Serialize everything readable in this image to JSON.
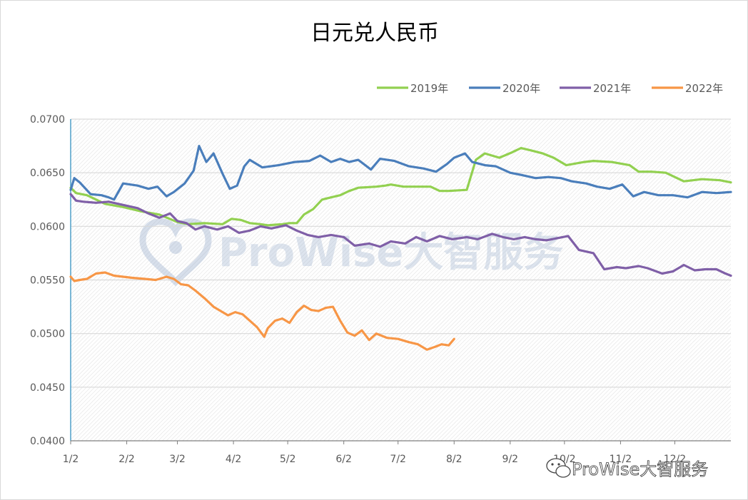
{
  "colors": {
    "2019": "#92d050",
    "2020": "#4a7ebb",
    "2021": "#7f5fa7",
    "2022": "#f79646",
    "axis": "#4f9fc8",
    "grid": "#d9d9d9"
  },
  "watermark": {
    "text": "ProWise大智服务",
    "logo_icon": "prowise-heart-icon"
  },
  "footer": {
    "icon": "wechat-icon",
    "text": "ProWise大智服务"
  },
  "chart_data": {
    "type": "line",
    "title": "日元兑人民币",
    "xlabel": "",
    "ylabel": "",
    "ylim": [
      0.04,
      0.07
    ],
    "yticks": [
      "0.0700",
      "0.0650",
      "0.0600",
      "0.0550",
      "0.0500",
      "0.0450",
      "0.0400"
    ],
    "ytick_values": [
      0.07,
      0.065,
      0.06,
      0.055,
      0.05,
      0.045,
      0.04
    ],
    "xticks": [
      "1/2",
      "2/2",
      "3/2",
      "4/2",
      "5/2",
      "6/2",
      "7/2",
      "8/2",
      "9/2",
      "10/2",
      "11/2",
      "12/2"
    ],
    "xtick_days": [
      1,
      32,
      60,
      91,
      121,
      152,
      182,
      213,
      244,
      274,
      305,
      335
    ],
    "xlim_days": [
      1,
      366
    ],
    "grid": true,
    "legend_position": "top-right",
    "series": [
      {
        "name": "2019年",
        "x_days": [
          1,
          4,
          10,
          20,
          30,
          40,
          50,
          60,
          66,
          75,
          85,
          90,
          95,
          100,
          106,
          110,
          118,
          122,
          126,
          130,
          135,
          140,
          145,
          150,
          155,
          160,
          170,
          175,
          178,
          185,
          195,
          200,
          205,
          210,
          220,
          225,
          230,
          238,
          245,
          250,
          255,
          262,
          268,
          275,
          285,
          290,
          300,
          310,
          315,
          322,
          330,
          340,
          350,
          360,
          366
        ],
        "values": [
          0.0636,
          0.0631,
          0.0629,
          0.0621,
          0.0618,
          0.0614,
          0.0611,
          0.0604,
          0.0602,
          0.0603,
          0.0602,
          0.0607,
          0.0606,
          0.0603,
          0.0602,
          0.0601,
          0.0602,
          0.0603,
          0.0603,
          0.0611,
          0.0616,
          0.0625,
          0.0627,
          0.0629,
          0.0633,
          0.0636,
          0.0637,
          0.0638,
          0.0639,
          0.0637,
          0.0637,
          0.0637,
          0.0633,
          0.0633,
          0.0634,
          0.0662,
          0.0668,
          0.0664,
          0.0669,
          0.0673,
          0.0671,
          0.0668,
          0.0664,
          0.0657,
          0.066,
          0.0661,
          0.066,
          0.0657,
          0.0651,
          0.0651,
          0.065,
          0.0642,
          0.0644,
          0.0643,
          0.0641
        ]
      },
      {
        "name": "2020年",
        "x_days": [
          1,
          3,
          6,
          12,
          18,
          22,
          25,
          30,
          38,
          44,
          49,
          54,
          58,
          64,
          69,
          72,
          76,
          80,
          85,
          89,
          93,
          97,
          100,
          107,
          116,
          125,
          133,
          139,
          145,
          150,
          155,
          160,
          167,
          172,
          180,
          188,
          196,
          203,
          209,
          213,
          219,
          223,
          230,
          236,
          244,
          250,
          258,
          265,
          272,
          278,
          286,
          292,
          299,
          306,
          312,
          318,
          326,
          334,
          342,
          350,
          358,
          366
        ],
        "values": [
          0.0634,
          0.0645,
          0.0641,
          0.063,
          0.0629,
          0.0627,
          0.0625,
          0.064,
          0.0638,
          0.0635,
          0.0637,
          0.0628,
          0.0632,
          0.064,
          0.0652,
          0.0675,
          0.066,
          0.0668,
          0.0649,
          0.0635,
          0.0638,
          0.0656,
          0.0662,
          0.0655,
          0.0657,
          0.066,
          0.0661,
          0.0666,
          0.066,
          0.0663,
          0.066,
          0.0662,
          0.0653,
          0.0663,
          0.0661,
          0.0656,
          0.0654,
          0.0651,
          0.0658,
          0.0664,
          0.0668,
          0.066,
          0.0657,
          0.0656,
          0.065,
          0.0648,
          0.0645,
          0.0646,
          0.0645,
          0.0642,
          0.064,
          0.0637,
          0.0635,
          0.0639,
          0.0628,
          0.0632,
          0.0629,
          0.0629,
          0.0627,
          0.0632,
          0.0631,
          0.0632
        ]
      },
      {
        "name": "2021年",
        "x_days": [
          1,
          4,
          8,
          15,
          22,
          30,
          38,
          44,
          50,
          56,
          60,
          65,
          70,
          75,
          82,
          88,
          94,
          100,
          106,
          112,
          120,
          126,
          132,
          138,
          145,
          152,
          158,
          166,
          172,
          178,
          186,
          192,
          198,
          205,
          212,
          220,
          226,
          234,
          240,
          246,
          252,
          258,
          264,
          270,
          276,
          282,
          290,
          296,
          303,
          308,
          315,
          320,
          328,
          334,
          340,
          346,
          352,
          358,
          363,
          366
        ],
        "values": [
          0.063,
          0.0624,
          0.0623,
          0.0622,
          0.0623,
          0.062,
          0.0617,
          0.0612,
          0.0608,
          0.0612,
          0.0605,
          0.0603,
          0.0597,
          0.06,
          0.0597,
          0.06,
          0.0594,
          0.0596,
          0.06,
          0.0598,
          0.0601,
          0.0596,
          0.0592,
          0.059,
          0.0592,
          0.059,
          0.0582,
          0.0584,
          0.0581,
          0.0586,
          0.0584,
          0.059,
          0.0586,
          0.0591,
          0.0588,
          0.059,
          0.0588,
          0.0593,
          0.059,
          0.0588,
          0.059,
          0.0588,
          0.0587,
          0.0589,
          0.0591,
          0.0578,
          0.0575,
          0.056,
          0.0562,
          0.0561,
          0.0563,
          0.0561,
          0.0556,
          0.0558,
          0.0564,
          0.0559,
          0.056,
          0.056,
          0.0556,
          0.0554
        ]
      },
      {
        "name": "2022年",
        "x_days": [
          1,
          3,
          6,
          10,
          15,
          20,
          25,
          30,
          35,
          42,
          48,
          54,
          58,
          62,
          66,
          70,
          75,
          80,
          85,
          88,
          92,
          96,
          100,
          104,
          108,
          110,
          114,
          118,
          122,
          126,
          130,
          134,
          138,
          142,
          146,
          150,
          154,
          158,
          162,
          166,
          170,
          176,
          182,
          188,
          193,
          198,
          203,
          206,
          210,
          213
        ],
        "values": [
          0.0553,
          0.0549,
          0.055,
          0.0551,
          0.0556,
          0.0557,
          0.0554,
          0.0553,
          0.0552,
          0.0551,
          0.055,
          0.0553,
          0.0551,
          0.0546,
          0.0545,
          0.054,
          0.0533,
          0.0525,
          0.052,
          0.0517,
          0.052,
          0.0518,
          0.0512,
          0.0506,
          0.0497,
          0.0505,
          0.0512,
          0.0514,
          0.051,
          0.052,
          0.0526,
          0.0522,
          0.0521,
          0.0524,
          0.0525,
          0.0512,
          0.0501,
          0.0498,
          0.0503,
          0.0494,
          0.05,
          0.0496,
          0.0495,
          0.0492,
          0.049,
          0.0485,
          0.0488,
          0.049,
          0.0489,
          0.0495
        ]
      }
    ]
  }
}
